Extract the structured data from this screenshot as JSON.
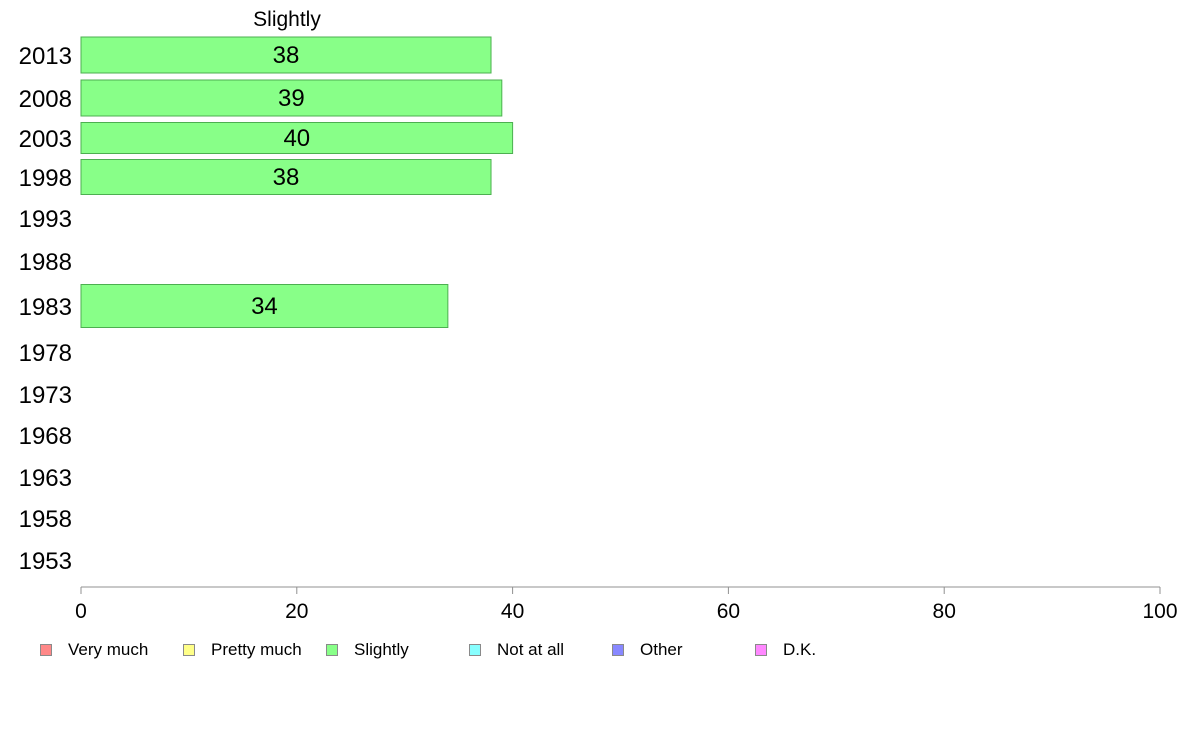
{
  "chart_data": {
    "type": "bar",
    "orientation": "horizontal",
    "title": "Slightly",
    "categories": [
      "2013",
      "2008",
      "2003",
      "1998",
      "1993",
      "1988",
      "1983",
      "1978",
      "1973",
      "1968",
      "1963",
      "1958",
      "1953"
    ],
    "series": [
      {
        "name": "Slightly",
        "values": [
          38,
          39,
          40,
          38,
          null,
          null,
          34,
          null,
          null,
          null,
          null,
          null,
          null
        ]
      }
    ],
    "data_labels": [
      "38",
      "39",
      "40",
      "38",
      "",
      "",
      "34",
      "",
      "",
      "",
      "",
      "",
      ""
    ],
    "xlim": [
      0,
      100
    ],
    "xticks": [
      "0",
      "20",
      "40",
      "60",
      "80",
      "100"
    ],
    "grid": false,
    "bar_color": "#88ff88",
    "bar_edge_color": "#4caf50",
    "legend_position": "bottom",
    "legend": [
      {
        "label": "Very much",
        "color": "#ff8888"
      },
      {
        "label": "Pretty much",
        "color": "#ffff88"
      },
      {
        "label": "Slightly",
        "color": "#88ff88"
      },
      {
        "label": "Not at all",
        "color": "#88ffff"
      },
      {
        "label": "Other",
        "color": "#8888ff"
      },
      {
        "label": "D.K.",
        "color": "#ff88ff"
      }
    ]
  }
}
